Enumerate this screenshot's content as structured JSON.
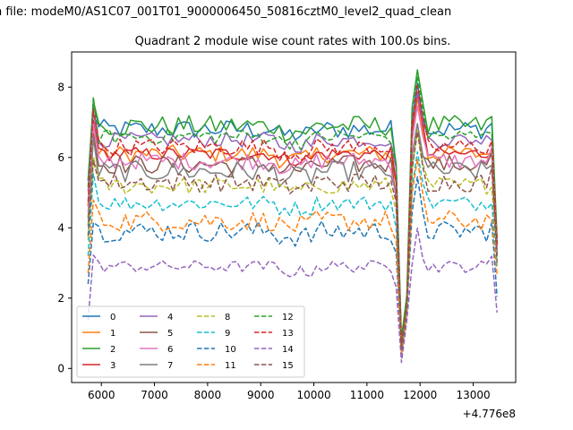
{
  "window_title": "n file: modeM0/AS1C07_001T01_9000006450_50816cztM0_level2_quad_clean",
  "chart_data": {
    "type": "line",
    "title": "Quadrant 2 module wise count rates with 100.0s bins.",
    "xlabel": "",
    "ylabel": "",
    "x_offset_label": "+4.776e8",
    "xlim": [
      5440,
      13800
    ],
    "ylim": [
      -0.4,
      9.0
    ],
    "x_ticks": [
      6000,
      7000,
      8000,
      9000,
      10000,
      11000,
      12000,
      13000
    ],
    "y_ticks": [
      0,
      2,
      4,
      6,
      8
    ],
    "grid": false,
    "legend_placement": "lower-left",
    "legend_ncol": 4,
    "x": [
      5750,
      5850,
      5950,
      6050,
      6150,
      6250,
      6350,
      6450,
      6550,
      6650,
      6750,
      6850,
      6950,
      7050,
      7150,
      7250,
      7350,
      7450,
      7550,
      7650,
      7750,
      7850,
      7950,
      8050,
      8150,
      8250,
      8350,
      8450,
      8550,
      8650,
      8750,
      8850,
      8950,
      9050,
      9150,
      9250,
      9350,
      9450,
      9550,
      9650,
      9750,
      9850,
      9950,
      10050,
      10150,
      10250,
      10350,
      10450,
      10550,
      10650,
      10750,
      10850,
      10950,
      11050,
      11150,
      11250,
      11350,
      11450,
      11550,
      11650,
      11750,
      11850,
      11950,
      12050,
      12150,
      12250,
      12350,
      12450,
      12550,
      12650,
      12750,
      12850,
      12950,
      13050,
      13150,
      13250,
      13350,
      13450
    ],
    "series": [
      {
        "name": "0",
        "color": "#1f77b4",
        "dash": "solid",
        "plateau": 6.8,
        "low": 0.7,
        "peak": 8.1,
        "end": 3.6,
        "amp": 0.28,
        "ramp": 7.6
      },
      {
        "name": "1",
        "color": "#ff7f0e",
        "dash": "solid",
        "plateau": 6.1,
        "low": 0.6,
        "peak": 7.7,
        "end": 3.4,
        "amp": 0.25,
        "ramp": 6.9
      },
      {
        "name": "2",
        "color": "#2ca02c",
        "dash": "solid",
        "plateau": 6.9,
        "low": 0.8,
        "peak": 8.5,
        "end": 3.7,
        "amp": 0.3,
        "ramp": 7.7
      },
      {
        "name": "3",
        "color": "#d62728",
        "dash": "solid",
        "plateau": 6.1,
        "low": 0.6,
        "peak": 7.8,
        "end": 3.3,
        "amp": 0.2,
        "ramp": 7.1
      },
      {
        "name": "4",
        "color": "#9467bd",
        "dash": "solid",
        "plateau": 6.5,
        "low": 0.5,
        "peak": 7.9,
        "end": 3.5,
        "amp": 0.22,
        "ramp": 7.3
      },
      {
        "name": "5",
        "color": "#8c564b",
        "dash": "solid",
        "plateau": 5.8,
        "low": 0.5,
        "peak": 7.0,
        "end": 3.2,
        "amp": 0.27,
        "ramp": 6.7
      },
      {
        "name": "6",
        "color": "#e377c2",
        "dash": "solid",
        "plateau": 5.9,
        "low": 0.6,
        "peak": 7.5,
        "end": 3.3,
        "amp": 0.25,
        "ramp": 6.9
      },
      {
        "name": "7",
        "color": "#7f7f7f",
        "dash": "solid",
        "plateau": 5.6,
        "low": 0.5,
        "peak": 7.0,
        "end": 3.2,
        "amp": 0.3,
        "ramp": 6.5
      },
      {
        "name": "8",
        "color": "#bcbd22",
        "dash": "dashed",
        "plateau": 5.2,
        "low": 0.4,
        "peak": 6.7,
        "end": 3.0,
        "amp": 0.25,
        "ramp": 6.0
      },
      {
        "name": "9",
        "color": "#17becf",
        "dash": "dashed",
        "plateau": 4.7,
        "low": 0.4,
        "peak": 6.2,
        "end": 2.9,
        "amp": 0.22,
        "ramp": 5.6
      },
      {
        "name": "10",
        "color": "#1f77b4",
        "dash": "dashed",
        "plateau": 3.9,
        "low": 0.3,
        "peak": 5.4,
        "end": 2.0,
        "amp": 0.3,
        "ramp": 4.2
      },
      {
        "name": "11",
        "color": "#ff7f0e",
        "dash": "dashed",
        "plateau": 4.2,
        "low": 0.4,
        "peak": 5.9,
        "end": 2.6,
        "amp": 0.3,
        "ramp": 4.8
      },
      {
        "name": "12",
        "color": "#2ca02c",
        "dash": "dashed",
        "plateau": 6.6,
        "low": 0.7,
        "peak": 8.3,
        "end": 3.6,
        "amp": 0.22,
        "ramp": 7.7
      },
      {
        "name": "13",
        "color": "#d62728",
        "dash": "dashed",
        "plateau": 6.3,
        "low": 0.6,
        "peak": 8.0,
        "end": 3.5,
        "amp": 0.25,
        "ramp": 7.4
      },
      {
        "name": "14",
        "color": "#9467bd",
        "dash": "dashed",
        "plateau": 2.9,
        "low": 0.2,
        "peak": 4.0,
        "end": 1.6,
        "amp": 0.17,
        "ramp": 3.2
      },
      {
        "name": "15",
        "color": "#8c564b",
        "dash": "dashed",
        "plateau": 5.3,
        "low": 0.5,
        "peak": 6.7,
        "end": 3.0,
        "amp": 0.28,
        "ramp": 6.0
      }
    ]
  }
}
